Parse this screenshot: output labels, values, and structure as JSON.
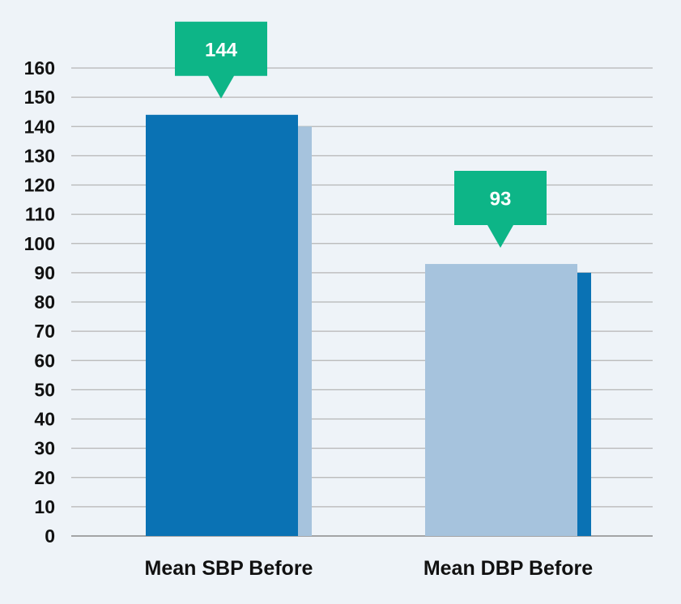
{
  "chart_data": {
    "type": "bar",
    "categories": [
      "Mean SBP Before",
      "Mean DBP Before"
    ],
    "series": [
      {
        "values": [
          144,
          93
        ],
        "color": "#0a72b4"
      },
      {
        "values": [
          140,
          90
        ],
        "color": "#a6c3dd"
      }
    ],
    "primary_colors": [
      "#0a72b4",
      "#a6c3dd"
    ],
    "secondary_colors": [
      "#a6c3dd",
      "#0a72b4"
    ],
    "data_labels": [
      "144",
      "93"
    ],
    "callout_color": "#0db587",
    "yticks": [
      0,
      10,
      20,
      30,
      40,
      50,
      60,
      70,
      80,
      90,
      100,
      110,
      120,
      130,
      140,
      150,
      160
    ],
    "ylim": [
      0,
      160
    ],
    "grid": true,
    "legend": "none"
  }
}
